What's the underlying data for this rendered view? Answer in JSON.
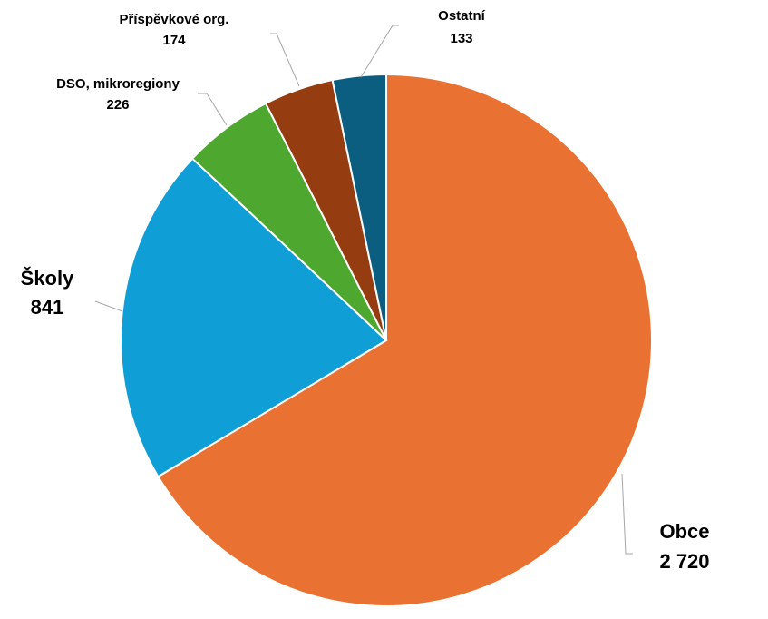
{
  "chart_data": {
    "type": "pie",
    "categories": [
      "Obce",
      "Školy",
      "DSO, mikroregiony",
      "Příspěvkové org.",
      "Ostatní"
    ],
    "values": [
      2720,
      841,
      226,
      174,
      133
    ],
    "value_labels": [
      "2 720",
      "841",
      "226",
      "174",
      "133"
    ],
    "colors": [
      "#E97132",
      "#0F9ED5",
      "#4EA72E",
      "#963C11",
      "#0B5E80"
    ]
  }
}
